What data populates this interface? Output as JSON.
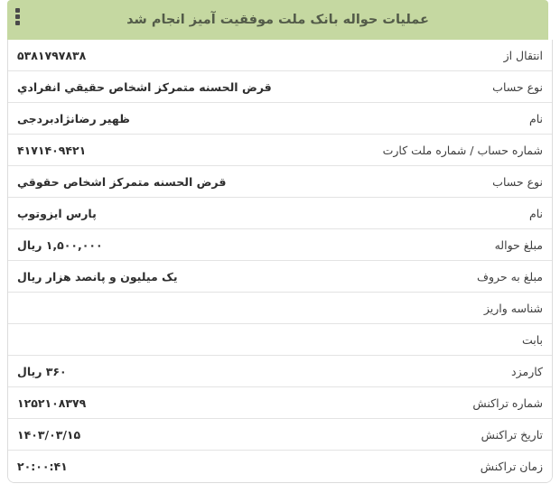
{
  "header": {
    "title": "عملیات حواله بانک ملت موفقیت آمیز انجام شد",
    "menu_icon": "kebab-vertical-icon"
  },
  "rows": [
    {
      "label": "انتقال از",
      "value": "۵۳۸۱۷۹۷۸۳۸"
    },
    {
      "label": "نوع حساب",
      "value": "قرض الحسنه متمرکز اشخاص حقیقي انفرادي"
    },
    {
      "label": "نام",
      "value": "ظهیر رضانژادبردجی"
    },
    {
      "label": "شماره حساب / شماره ملت کارت",
      "value": "۴۱۷۱۴۰۹۴۲۱"
    },
    {
      "label": "نوع حساب",
      "value": "قرض الحسنه متمرکز اشخاص حقوقي"
    },
    {
      "label": "نام",
      "value": "پارس ایزوتوپ"
    },
    {
      "label": "مبلغ حواله",
      "value": "۱,۵۰۰,۰۰۰ ریال"
    },
    {
      "label": "مبلغ به حروف",
      "value": "یک میلیون و پانصد هزار ریال"
    },
    {
      "label": "شناسه واریز",
      "value": ""
    },
    {
      "label": "بابت",
      "value": ""
    },
    {
      "label": "کارمزد",
      "value": "۳۶۰ ریال"
    },
    {
      "label": "شماره تراکنش",
      "value": "۱۲۵۲۱۰۸۳۷۹"
    },
    {
      "label": "تاریخ تراکنش",
      "value": "۱۴۰۳/۰۳/۱۵"
    },
    {
      "label": "زمان تراکنش",
      "value": "۲۰:۰۰:۴۱"
    }
  ],
  "colors": {
    "banner_bg": "#c5d8a1",
    "banner_text": "#535b49",
    "label_text": "#3f3f3f",
    "value_text": "#2e2e2e",
    "card_border": "#dcdcdc",
    "row_separator": "#e3e3e3",
    "kebab_dot": "#4a4a4a"
  }
}
